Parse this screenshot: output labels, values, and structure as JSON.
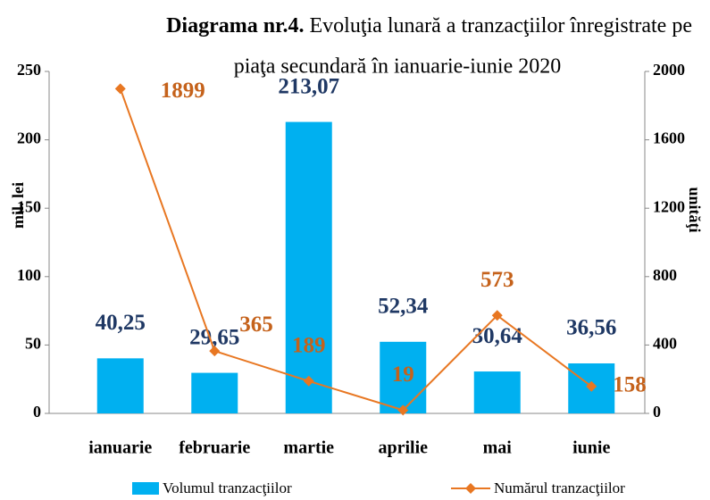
{
  "chart_data": {
    "type": "bar_line",
    "title": [
      "Diagrama nr.4.",
      "Evoluţia lunară a tranzacţiilor înregistrate pe",
      "piaţa secundară în ianuarie-iunie  2020"
    ],
    "categories": [
      "ianuarie",
      "februarie",
      "martie",
      "aprilie",
      "mai",
      "iunie"
    ],
    "series": [
      {
        "name": "Volumul tranzacţiilor",
        "type": "bar",
        "color": "#00b0f0",
        "label_color": "#1f3864",
        "values": [
          40.25,
          29.65,
          213.07,
          52.34,
          30.64,
          36.56
        ],
        "value_labels": [
          "40,25",
          "29,65",
          "213,07",
          "52,34",
          "30,64",
          "36,56"
        ]
      },
      {
        "name": "Numărul tranzacţiilor",
        "type": "line",
        "axis": "y2",
        "color": "#e87722",
        "label_color": "#c5621b",
        "values": [
          1899,
          365,
          189,
          19,
          573,
          158
        ]
      }
    ],
    "ylabel": "mil. lei",
    "y2label": "unităţi",
    "ylim": [
      0,
      250
    ],
    "yticks": [
      0,
      50,
      100,
      150,
      200,
      250
    ],
    "y2lim": [
      0,
      2000
    ],
    "y2ticks": [
      0,
      400,
      800,
      1200,
      1600,
      2000
    ],
    "grid": false
  }
}
